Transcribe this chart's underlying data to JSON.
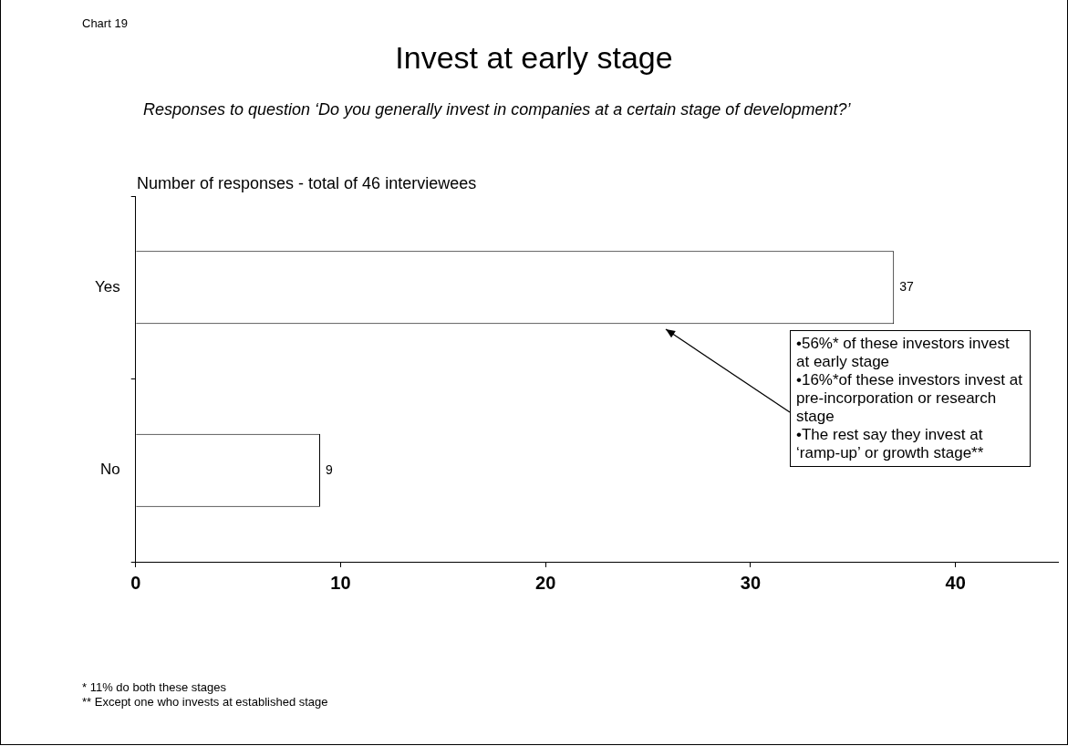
{
  "chart_data": {
    "type": "bar",
    "orientation": "horizontal",
    "title": "Invest at early stage",
    "subtitle": "Responses to question ‘Do you generally invest in companies at a certain stage of development?’",
    "categories": [
      "Yes",
      "No"
    ],
    "values": [
      37,
      9
    ],
    "color": "#ffffff",
    "xlim": [
      0,
      45
    ],
    "xticks": [
      0,
      10,
      20,
      30,
      40
    ],
    "grid": false,
    "data_labels": true,
    "annotations": [
      "Chart 19",
      "Number of responses - total of 46 interviewees",
      "* 11% do both these stages",
      "** Except one who invests at established stage",
      "•56%* of these investors invest at early stage\n•16%*of these investors invest at pre-incorporation or research stage\n•The rest say they invest at ‘ramp-up’ or growth stage**"
    ]
  }
}
